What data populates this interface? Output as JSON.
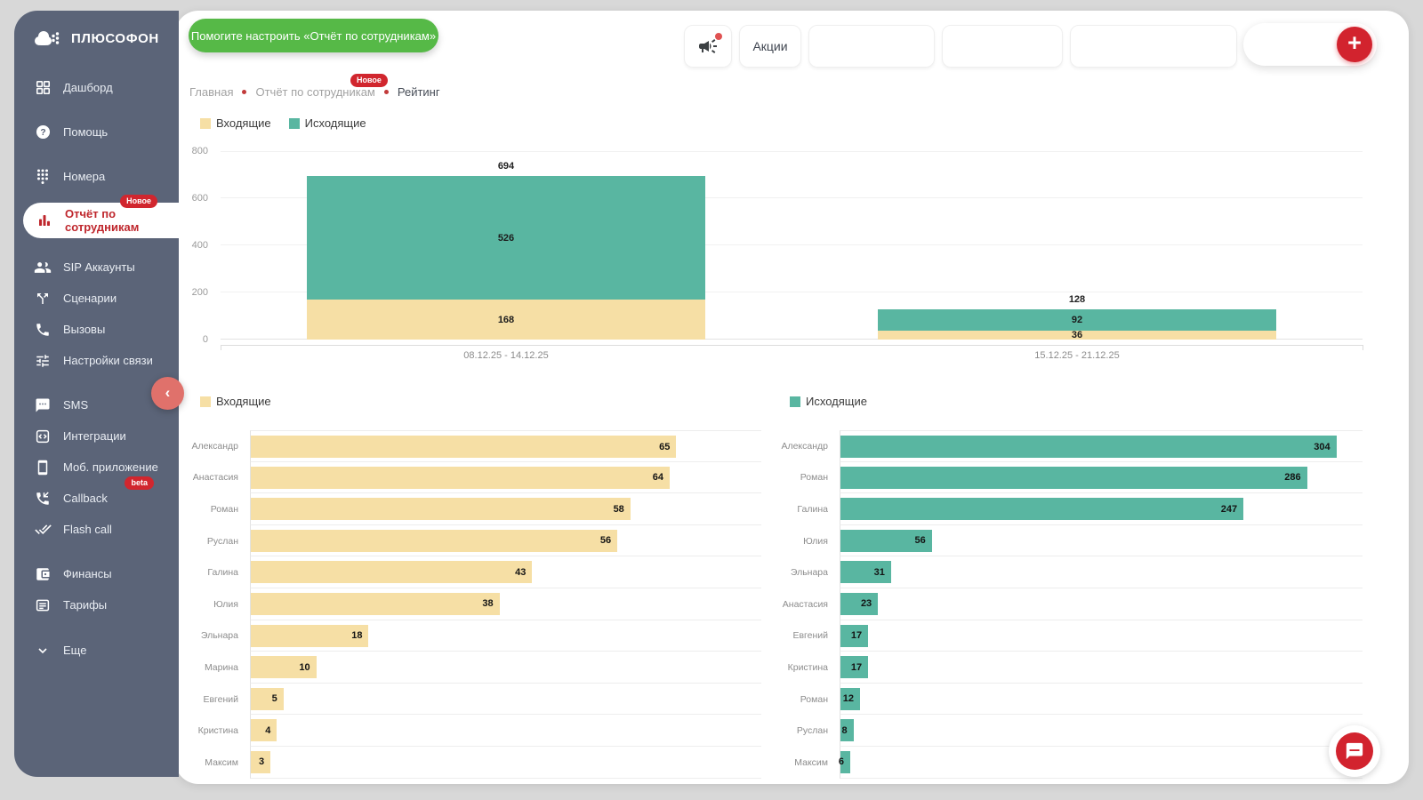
{
  "app": {
    "name": "ПЛЮСОФОН"
  },
  "sidebar": {
    "items": [
      {
        "label": "Дашборд"
      },
      {
        "label": "Помощь"
      },
      {
        "label": "Номера"
      },
      {
        "label": "Отчёт по сотрудникам",
        "badge": "Новое",
        "active": true
      },
      {
        "label": "SIP Аккаунты"
      },
      {
        "label": "Сценарии"
      },
      {
        "label": "Вызовы"
      },
      {
        "label": "Настройки связи"
      },
      {
        "label": "SMS"
      },
      {
        "label": "Интеграции"
      },
      {
        "label": "Моб. приложение"
      },
      {
        "label": "Callback",
        "badge": "beta"
      },
      {
        "label": "Flash call"
      },
      {
        "label": "Финансы"
      },
      {
        "label": "Тарифы"
      },
      {
        "label": "Еще"
      }
    ]
  },
  "header": {
    "help_button": "Помогите настроить «Отчёт по сотрудникам»",
    "promo_label": "Акции",
    "plus_label": "+",
    "breadcrumb": {
      "items": [
        "Главная",
        "Отчёт по сотрудникам",
        "Рейтинг"
      ],
      "badge": "Новое"
    }
  },
  "colors": {
    "sidebar_bg": "#5b6478",
    "accent_red": "#d1262e",
    "green": "#56b947",
    "salmon": "#e0716b",
    "incoming_yellow": "#f6dfa5",
    "outgoing_teal": "#59b6a1"
  },
  "chart_data": [
    {
      "type": "bar",
      "stacked": true,
      "legend_position": "top-left",
      "grid": "horizontal",
      "categories": [
        "08.12.25 - 14.12.25",
        "15.12.25 - 21.12.25"
      ],
      "series": [
        {
          "name": "Входящие",
          "color": "#f6dfa5",
          "values": [
            168,
            36
          ]
        },
        {
          "name": "Исходящие",
          "color": "#59b6a1",
          "values": [
            526,
            92
          ]
        }
      ],
      "totals": [
        694,
        128
      ],
      "ylim": [
        0,
        800
      ],
      "yticks": [
        0,
        200,
        400,
        600,
        800
      ]
    },
    {
      "type": "bar",
      "orientation": "horizontal",
      "name": "Входящие",
      "color": "#f6dfa5",
      "categories": [
        "Александр",
        "Анастасия",
        "Роман",
        "Руслан",
        "Галина",
        "Юлия",
        "Эльнара",
        "Марина",
        "Евгений",
        "Кристина",
        "Максим"
      ],
      "values": [
        65,
        64,
        58,
        56,
        43,
        38,
        18,
        10,
        5,
        4,
        3
      ],
      "xlim": [
        0,
        78
      ]
    },
    {
      "type": "bar",
      "orientation": "horizontal",
      "name": "Исходящие",
      "color": "#59b6a1",
      "categories": [
        "Александр",
        "Роман",
        "Галина",
        "Юлия",
        "Эльнара",
        "Анастасия",
        "Евгений",
        "Кристина",
        "Роман",
        "Руслан",
        "Максим"
      ],
      "values": [
        304,
        286,
        247,
        56,
        31,
        23,
        17,
        17,
        12,
        8,
        6
      ],
      "xlim": [
        0,
        320
      ]
    }
  ]
}
